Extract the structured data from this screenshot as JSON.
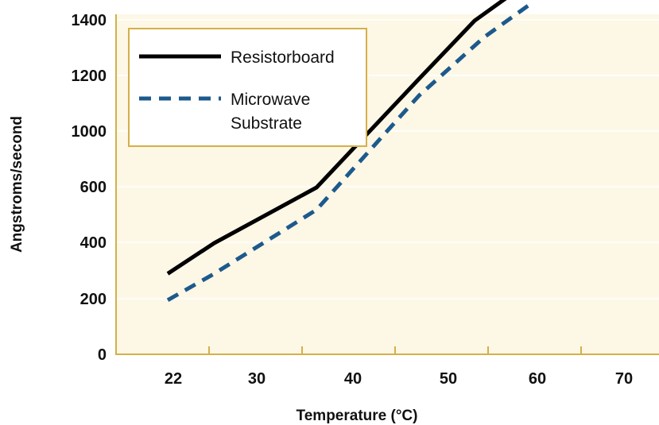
{
  "colors": {
    "plot_background": "#fdf7e6",
    "axis": "#d4b04a",
    "grid": "#ffffff",
    "legend_border": "#d4b04a",
    "legend_background": "#ffffff",
    "resistorboard": "#000000",
    "microwave": "#1d5a8c"
  },
  "chart_data": {
    "type": "line",
    "title": "",
    "xlabel": "Temperature (°C)",
    "ylabel": "Angstroms/second",
    "x_tick_labels": [
      "22",
      "30",
      "40",
      "50",
      "60",
      "70"
    ],
    "y_tick_labels": [
      "0",
      "200",
      "400",
      "600",
      "1000",
      "1200",
      "1400"
    ],
    "grid": true,
    "legend_position": "top-left",
    "series": [
      {
        "name": "Resistorboard",
        "style": "solid",
        "x": [
          22,
          27,
          38,
          49,
          55,
          60
        ],
        "y": [
          290,
          400,
          600,
          990,
          1200,
          1320
        ]
      },
      {
        "name": "Microwave Substrate",
        "legend_lines": [
          "Microwave",
          "Substrate"
        ],
        "style": "dashed",
        "x": [
          22,
          27,
          38,
          49,
          56,
          61
        ],
        "y": [
          195,
          290,
          520,
          930,
          1140,
          1260
        ]
      }
    ]
  }
}
